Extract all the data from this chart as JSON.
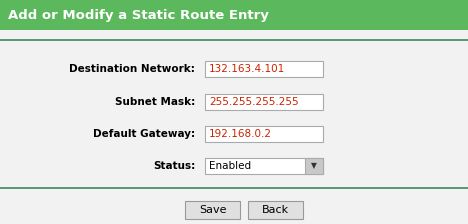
{
  "title": "Add or Modify a Static Route Entry",
  "title_bg": "#5cb85c",
  "title_text_color": "#ffffff",
  "bg_color": "#f2f2f2",
  "panel_bg": "#f2f2f2",
  "separator_color": "#3a8a5a",
  "fields": [
    {
      "label": "Destination Network:",
      "value": "132.163.4.101"
    },
    {
      "label": "Subnet Mask:",
      "value": "255.255.255.255"
    },
    {
      "label": "Default Gateway:",
      "value": "192.168.0.2"
    },
    {
      "label": "Status:",
      "value": "Enabled",
      "is_dropdown": true
    }
  ],
  "field_text_color": "#cc2200",
  "label_color": "#000000",
  "input_bg": "#ffffff",
  "input_border": "#aaaaaa",
  "button_bg": "#e0e0e0",
  "button_border": "#999999",
  "button_text": "#000000",
  "buttons": [
    "Save",
    "Back"
  ],
  "figsize": [
    4.68,
    2.24
  ],
  "dpi": 100
}
